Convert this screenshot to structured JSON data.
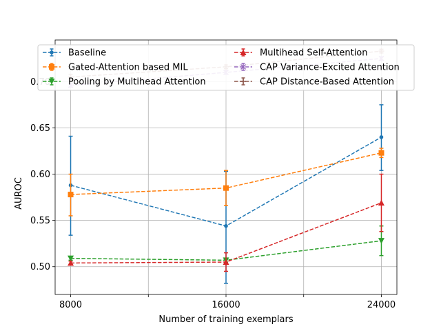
{
  "chart_data": {
    "type": "line",
    "xlabel": "Number of training exemplars",
    "ylabel": "AUROC",
    "x": [
      8000,
      16000,
      24000
    ],
    "xlim": [
      7200,
      24800
    ],
    "ylim": [
      0.47,
      0.745
    ],
    "x_ticks": [
      8000,
      12000,
      16000,
      20000,
      24000
    ],
    "x_tick_labels": [
      "8000",
      "",
      "16000",
      "",
      "24000"
    ],
    "y_ticks": [
      0.5,
      0.55,
      0.6,
      0.65,
      0.7
    ],
    "y_tick_labels": [
      "0.50",
      "0.55",
      "0.60",
      "0.65",
      "0.70"
    ],
    "grid": true,
    "legend_position": "top",
    "series": [
      {
        "name": "Baseline",
        "color": "#1f77b4",
        "marker": "circle",
        "values": [
          0.588,
          0.544,
          0.64
        ],
        "err_low": [
          0.534,
          0.482,
          0.604
        ],
        "err_high": [
          0.641,
          0.603,
          0.675
        ]
      },
      {
        "name": "Gated-Attention based MIL",
        "color": "#ff7f0e",
        "marker": "square",
        "values": [
          0.578,
          0.585,
          0.623
        ],
        "err_low": [
          0.555,
          0.566,
          0.618
        ],
        "err_high": [
          0.6,
          0.604,
          0.628
        ]
      },
      {
        "name": "Pooling by Multihead Attention",
        "color": "#2ca02c",
        "marker": "triangle-down",
        "values": [
          0.509,
          0.507,
          0.528
        ],
        "err_low": [
          0.507,
          0.505,
          0.512
        ],
        "err_high": [
          0.511,
          0.509,
          0.544
        ]
      },
      {
        "name": "Multihead Self-Attention",
        "color": "#d62728",
        "marker": "triangle-up",
        "values": [
          0.504,
          0.505,
          0.569
        ],
        "err_low": [
          0.502,
          0.495,
          0.538
        ],
        "err_high": [
          0.506,
          0.515,
          0.6
        ]
      },
      {
        "name": "CAP Variance-Excited Attention",
        "color": "#9467bd",
        "marker": "x",
        "values": [
          0.696,
          0.71,
          0.725
        ],
        "err_low": [
          0.694,
          0.708,
          0.723
        ],
        "err_high": [
          0.698,
          0.712,
          0.727
        ]
      },
      {
        "name": "CAP Distance-Based Attention",
        "color": "#8c564b",
        "marker": "cross",
        "values": [
          0.705,
          0.716,
          0.733
        ],
        "err_low": [
          0.702,
          0.714,
          0.731
        ],
        "err_high": [
          0.708,
          0.718,
          0.735
        ]
      }
    ]
  }
}
